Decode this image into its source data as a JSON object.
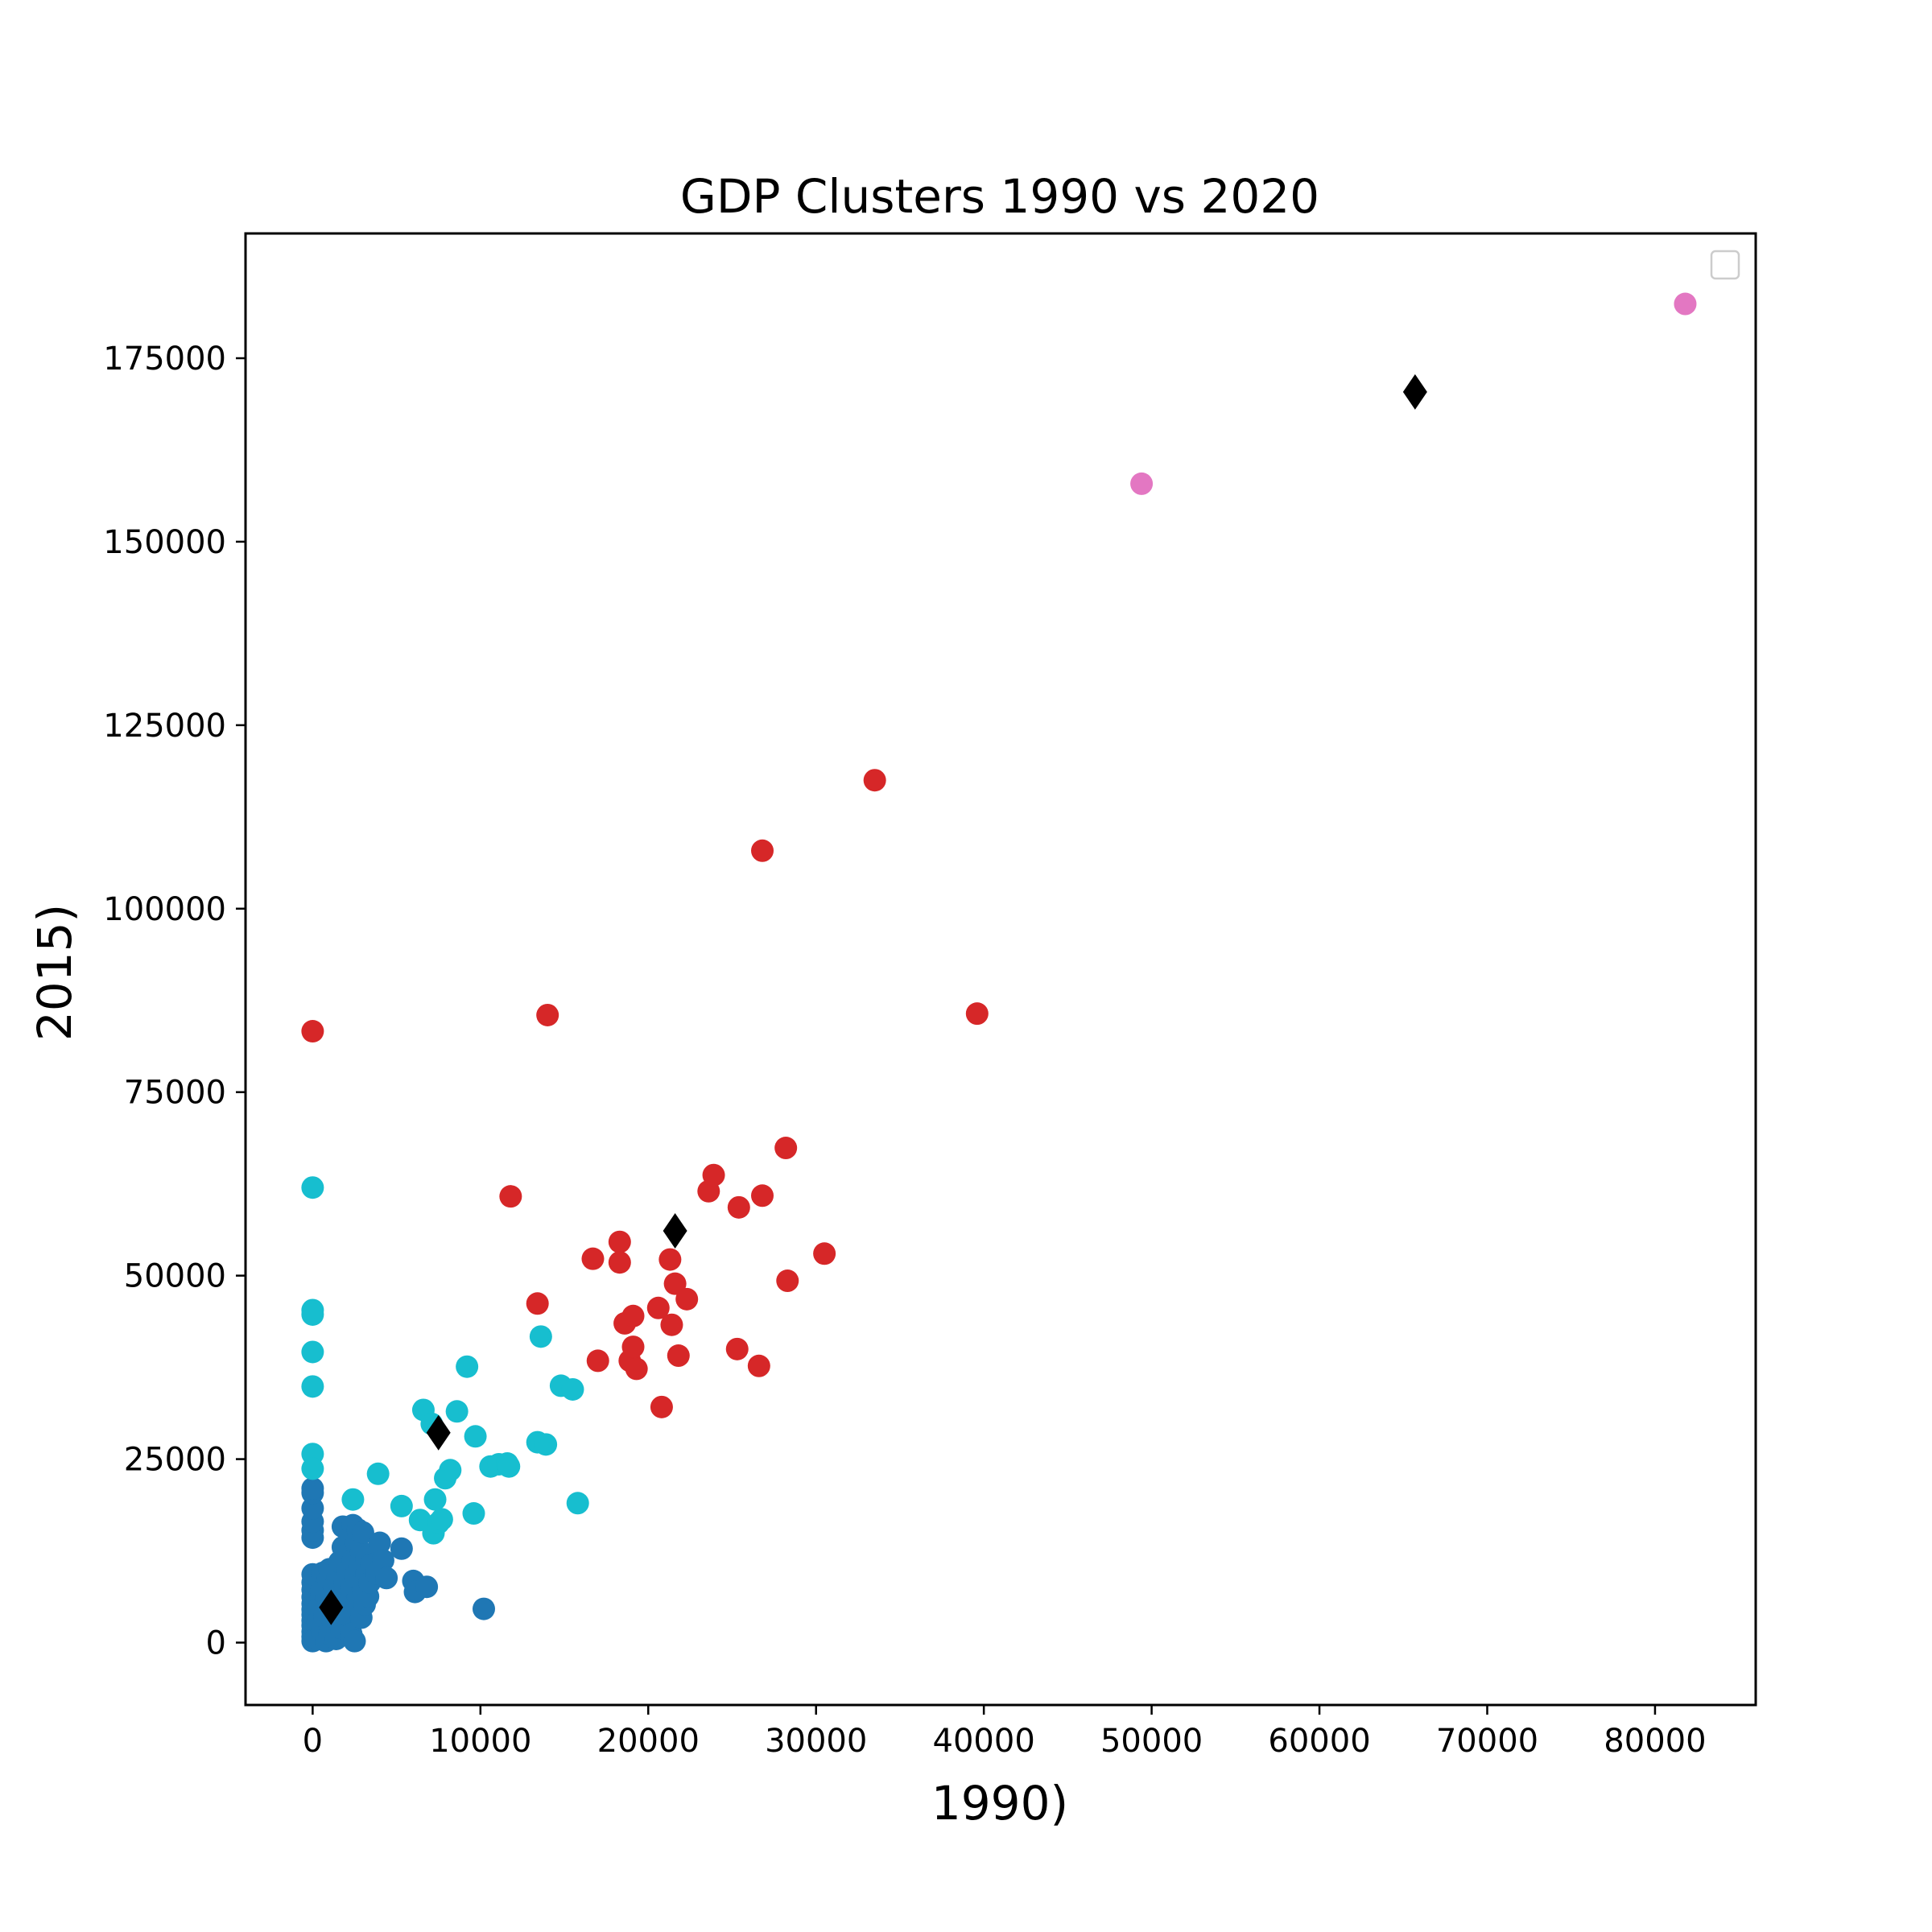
{
  "chart_data": {
    "type": "scatter",
    "title": "GDP Clusters 1990 vs 2020",
    "xlabel": "1990)",
    "ylabel": "2015)",
    "xlim": [
      -4000,
      86000
    ],
    "ylim": [
      -8500,
      192000
    ],
    "x_ticks": [
      0,
      10000,
      20000,
      30000,
      40000,
      50000,
      60000,
      70000,
      80000
    ],
    "y_ticks": [
      0,
      25000,
      50000,
      75000,
      100000,
      125000,
      150000,
      175000
    ],
    "grid": false,
    "legend": {
      "placement": "top-right",
      "entries": []
    },
    "series": [
      {
        "color": "#1f77b4",
        "marker": "circle",
        "points": [
          [
            0,
            200
          ],
          [
            0,
            800
          ],
          [
            0,
            1500
          ],
          [
            0,
            2300
          ],
          [
            0,
            3000
          ],
          [
            0,
            3800
          ],
          [
            0,
            4500
          ],
          [
            0,
            5300
          ],
          [
            0,
            6200
          ],
          [
            0,
            7200
          ],
          [
            0,
            8200
          ],
          [
            0,
            9300
          ],
          [
            0,
            14300
          ],
          [
            0,
            15300
          ],
          [
            0,
            16500
          ],
          [
            0,
            18300
          ],
          [
            0,
            20400
          ],
          [
            0,
            21000
          ],
          [
            200,
            600
          ],
          [
            300,
            2800
          ],
          [
            400,
            4800
          ],
          [
            500,
            7000
          ],
          [
            600,
            9500
          ],
          [
            600,
            1500
          ],
          [
            700,
            3500
          ],
          [
            800,
            200
          ],
          [
            800,
            6000
          ],
          [
            900,
            8800
          ],
          [
            1000,
            10000
          ],
          [
            1000,
            1200
          ],
          [
            1100,
            5000
          ],
          [
            1200,
            3000
          ],
          [
            1300,
            7500
          ],
          [
            1400,
            500
          ],
          [
            1500,
            9000
          ],
          [
            1500,
            4000
          ],
          [
            1600,
            11000
          ],
          [
            1700,
            2000
          ],
          [
            1700,
            6500
          ],
          [
            1800,
            13000
          ],
          [
            1800,
            15800
          ],
          [
            1900,
            8200
          ],
          [
            2000,
            3800
          ],
          [
            2000,
            12000
          ],
          [
            2100,
            9800
          ],
          [
            2200,
            5600
          ],
          [
            2200,
            14500
          ],
          [
            2300,
            1200
          ],
          [
            2300,
            7600
          ],
          [
            2400,
            16000
          ],
          [
            2400,
            11200
          ],
          [
            2500,
            4400
          ],
          [
            2500,
            200
          ],
          [
            2600,
            8800
          ],
          [
            2600,
            13600
          ],
          [
            2700,
            6200
          ],
          [
            2700,
            15400
          ],
          [
            2800,
            10400
          ],
          [
            2900,
            3400
          ],
          [
            2900,
            12400
          ],
          [
            3000,
            7200
          ],
          [
            3000,
            15000
          ],
          [
            3100,
            5200
          ],
          [
            3200,
            9400
          ],
          [
            3200,
            11600
          ],
          [
            3300,
            6300
          ],
          [
            3400,
            8200
          ],
          [
            3500,
            10600
          ],
          [
            3800,
            9400
          ],
          [
            4000,
            13600
          ],
          [
            4200,
            11200
          ],
          [
            4400,
            8800
          ],
          [
            5300,
            12800
          ],
          [
            6000,
            8400
          ],
          [
            6100,
            6900
          ],
          [
            6800,
            7600
          ],
          [
            10200,
            4600
          ]
        ]
      },
      {
        "color": "#17becf",
        "marker": "circle",
        "points": [
          [
            0,
            62000
          ],
          [
            0,
            45300
          ],
          [
            0,
            44700
          ],
          [
            0,
            39600
          ],
          [
            0,
            34900
          ],
          [
            0,
            25700
          ],
          [
            0,
            23700
          ],
          [
            2400,
            19500
          ],
          [
            3900,
            23000
          ],
          [
            5300,
            18600
          ],
          [
            6400,
            16700
          ],
          [
            6600,
            31700
          ],
          [
            7100,
            29800
          ],
          [
            7200,
            14900
          ],
          [
            7300,
            19500
          ],
          [
            7500,
            16300
          ],
          [
            7700,
            16800
          ],
          [
            7900,
            22400
          ],
          [
            8200,
            23500
          ],
          [
            8600,
            31500
          ],
          [
            9200,
            37600
          ],
          [
            9600,
            17600
          ],
          [
            9700,
            28100
          ],
          [
            10600,
            24000
          ],
          [
            11100,
            24300
          ],
          [
            11600,
            24400
          ],
          [
            11700,
            24000
          ],
          [
            13400,
            27300
          ],
          [
            13600,
            41700
          ],
          [
            13900,
            27000
          ],
          [
            14800,
            35000
          ],
          [
            15500,
            34500
          ],
          [
            15800,
            19000
          ]
        ]
      },
      {
        "color": "#d62728",
        "marker": "circle",
        "points": [
          [
            0,
            83300
          ],
          [
            11800,
            60800
          ],
          [
            13400,
            46200
          ],
          [
            14000,
            85500
          ],
          [
            16700,
            52300
          ],
          [
            17000,
            38400
          ],
          [
            18300,
            54600
          ],
          [
            18300,
            51800
          ],
          [
            18600,
            43500
          ],
          [
            18900,
            38400
          ],
          [
            19100,
            44500
          ],
          [
            19100,
            40300
          ],
          [
            19300,
            37300
          ],
          [
            20600,
            45600
          ],
          [
            20800,
            32100
          ],
          [
            21300,
            52200
          ],
          [
            21400,
            43300
          ],
          [
            21600,
            48900
          ],
          [
            21800,
            39100
          ],
          [
            22300,
            46800
          ],
          [
            23600,
            61500
          ],
          [
            23900,
            63700
          ],
          [
            25300,
            40000
          ],
          [
            25400,
            59300
          ],
          [
            26600,
            37700
          ],
          [
            26800,
            107900
          ],
          [
            26800,
            60900
          ],
          [
            28200,
            67400
          ],
          [
            28300,
            49300
          ],
          [
            30500,
            53000
          ],
          [
            33500,
            117500
          ],
          [
            39600,
            85700
          ]
        ]
      },
      {
        "color": "#e377c2",
        "marker": "circle",
        "points": [
          [
            49400,
            157900
          ],
          [
            81800,
            182400
          ]
        ]
      },
      {
        "color": "#000000",
        "marker": "diamond",
        "points": [
          [
            1100,
            4800
          ],
          [
            7500,
            28600
          ],
          [
            21600,
            56100
          ],
          [
            65700,
            170400
          ]
        ]
      }
    ]
  }
}
